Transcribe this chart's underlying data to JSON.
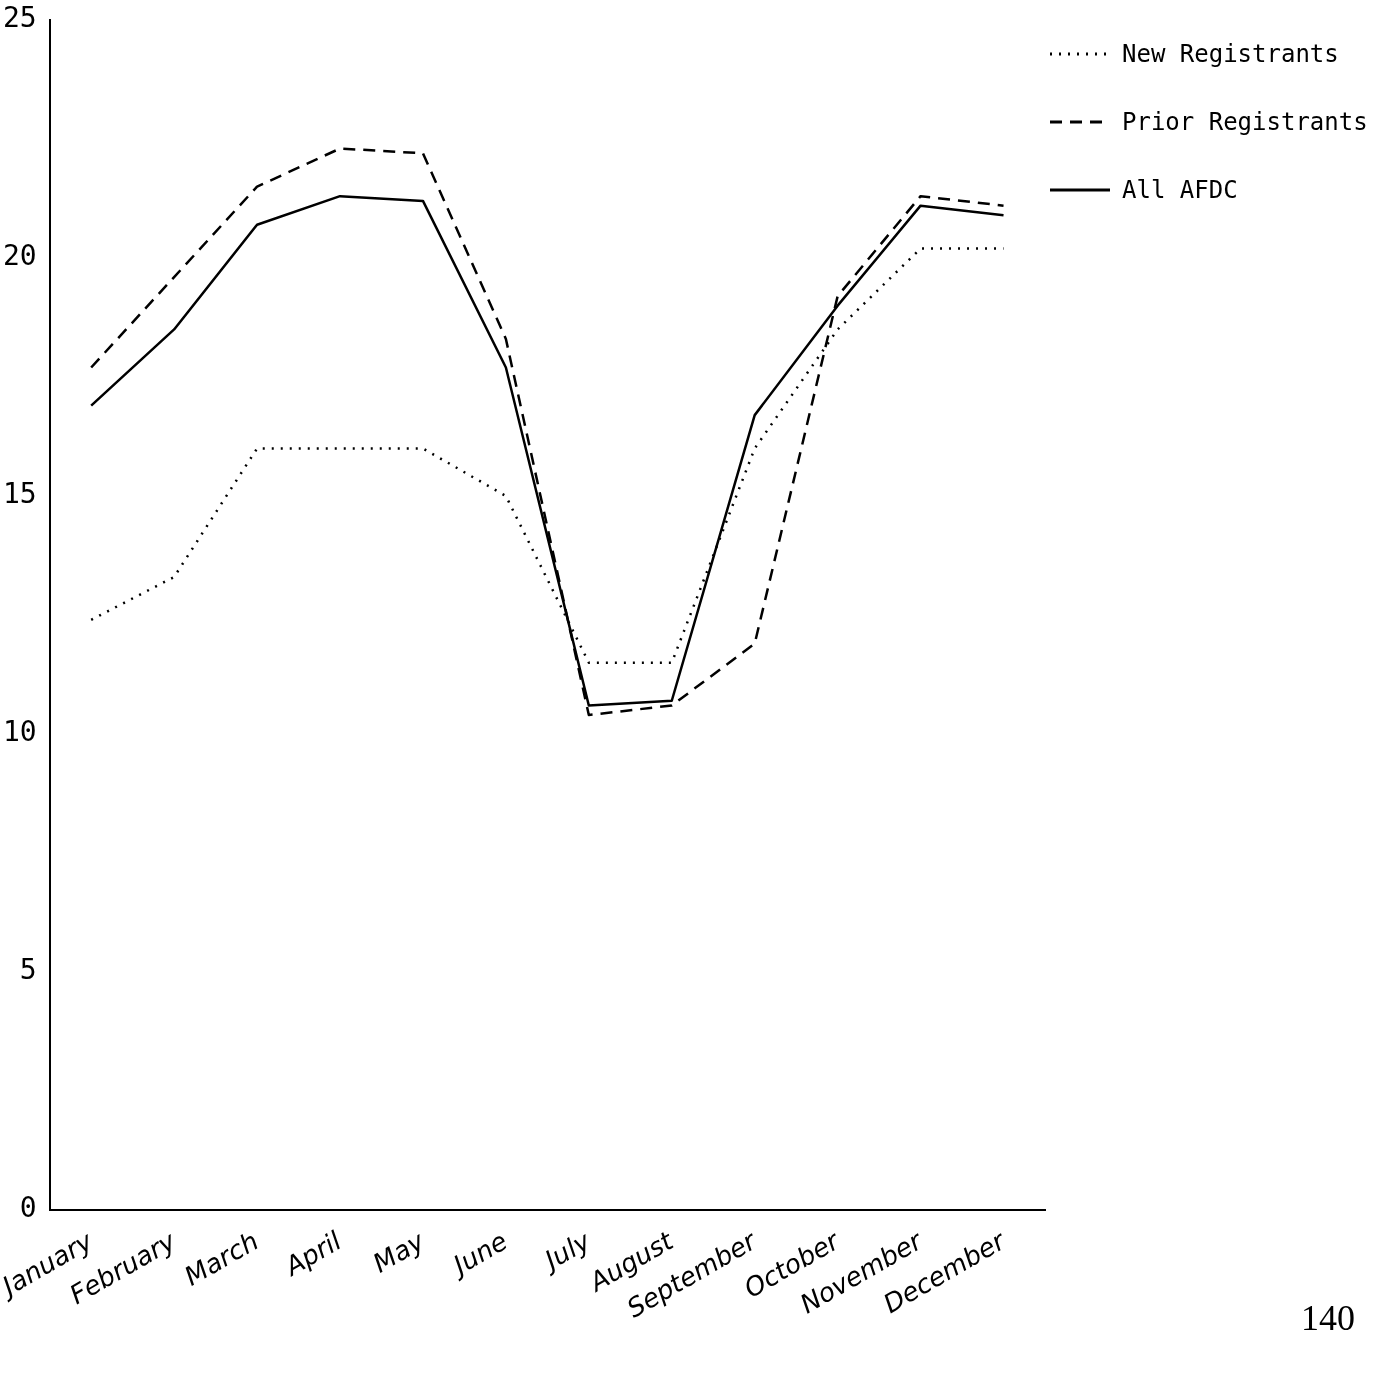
{
  "chart_data": {
    "type": "line",
    "categories": [
      "January",
      "February",
      "March",
      "April",
      "May",
      "June",
      "July",
      "August",
      "September",
      "October",
      "November",
      "December"
    ],
    "series": [
      {
        "name": "New Registrants",
        "color": "#000000",
        "line_style": "dotted",
        "values": [
          12.4,
          13.3,
          16.0,
          16.0,
          16.0,
          15.0,
          11.5,
          11.5,
          16.0,
          18.5,
          20.2,
          20.2
        ]
      },
      {
        "name": "Prior Registrants",
        "color": "#000000",
        "line_style": "dashed",
        "values": [
          17.7,
          19.6,
          21.5,
          22.3,
          22.2,
          18.3,
          10.4,
          10.6,
          11.9,
          19.2,
          21.3,
          21.1
        ]
      },
      {
        "name": "All AFDC",
        "color": "#000000",
        "line_style": "solid",
        "values": [
          16.9,
          18.5,
          20.7,
          21.3,
          21.2,
          17.7,
          10.6,
          10.7,
          16.7,
          19.0,
          21.1,
          20.9
        ]
      }
    ],
    "ylim": [
      0,
      25
    ],
    "yticks": [
      0,
      5,
      10,
      15,
      20,
      25
    ],
    "grid": false,
    "legend": "top right",
    "marker": "none",
    "annotations": [
      "140"
    ]
  }
}
